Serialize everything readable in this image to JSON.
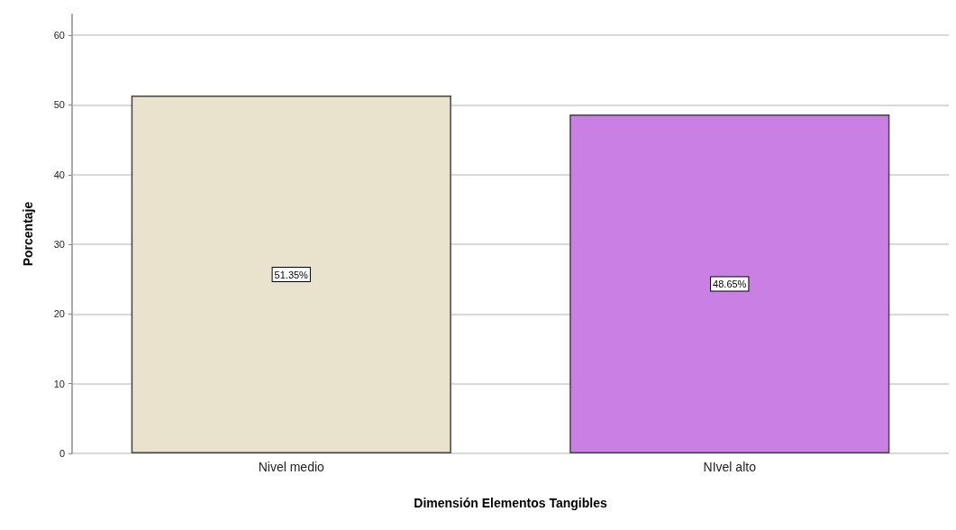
{
  "chart_data": {
    "type": "bar",
    "xlabel": "Dimensión Elementos Tangibles",
    "ylabel": "Porcentaje",
    "categories": [
      "Nivel medio",
      "NIvel alto"
    ],
    "values": [
      51.35,
      48.65
    ],
    "colors": [
      "#e9e3cd",
      "#c97fe3"
    ],
    "value_labels": [
      "51.35%",
      "48.65%"
    ],
    "ylim": [
      0,
      63
    ],
    "yticks": [
      0,
      10,
      20,
      30,
      40,
      50,
      60
    ],
    "grid": "y"
  }
}
